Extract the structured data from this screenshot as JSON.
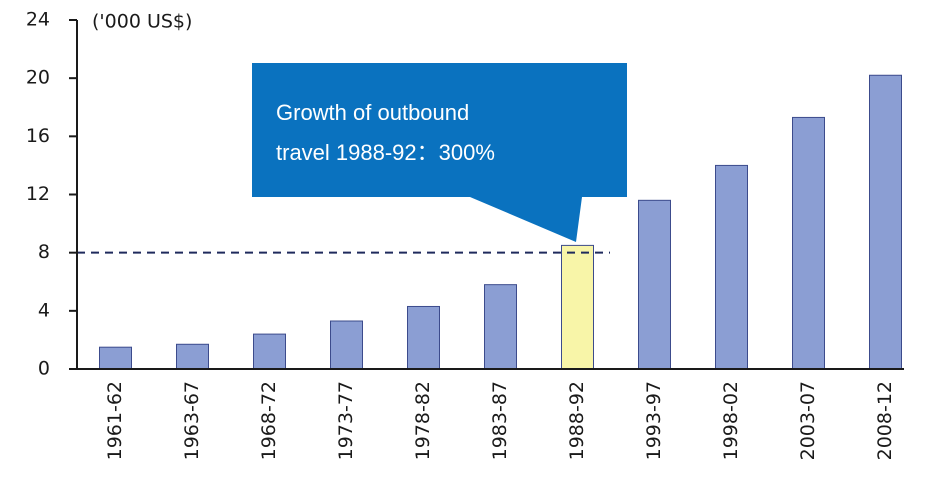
{
  "chart_data": {
    "type": "bar",
    "y_axis_label": "('000 US$)",
    "categories": [
      "1961-62",
      "1963-67",
      "1968-72",
      "1973-77",
      "1978-82",
      "1983-87",
      "1988-92",
      "1993-97",
      "1998-02",
      "2003-07",
      "2008-12"
    ],
    "values": [
      1.5,
      1.7,
      2.4,
      3.3,
      4.3,
      5.8,
      8.5,
      11.6,
      14.0,
      17.3,
      20.2
    ],
    "colors": [
      "#8b9ed3",
      "#8b9ed3",
      "#8b9ed3",
      "#8b9ed3",
      "#8b9ed3",
      "#8b9ed3",
      "#f8f5a8",
      "#8b9ed3",
      "#8b9ed3",
      "#8b9ed3",
      "#8b9ed3"
    ],
    "ylim": [
      0,
      24
    ],
    "yticks": [
      0,
      4,
      8,
      12,
      16,
      20,
      24
    ],
    "grid": false,
    "reference_line": 8,
    "annotation": [
      "Growth of outbound",
      "travel 1988-92：300%"
    ]
  }
}
